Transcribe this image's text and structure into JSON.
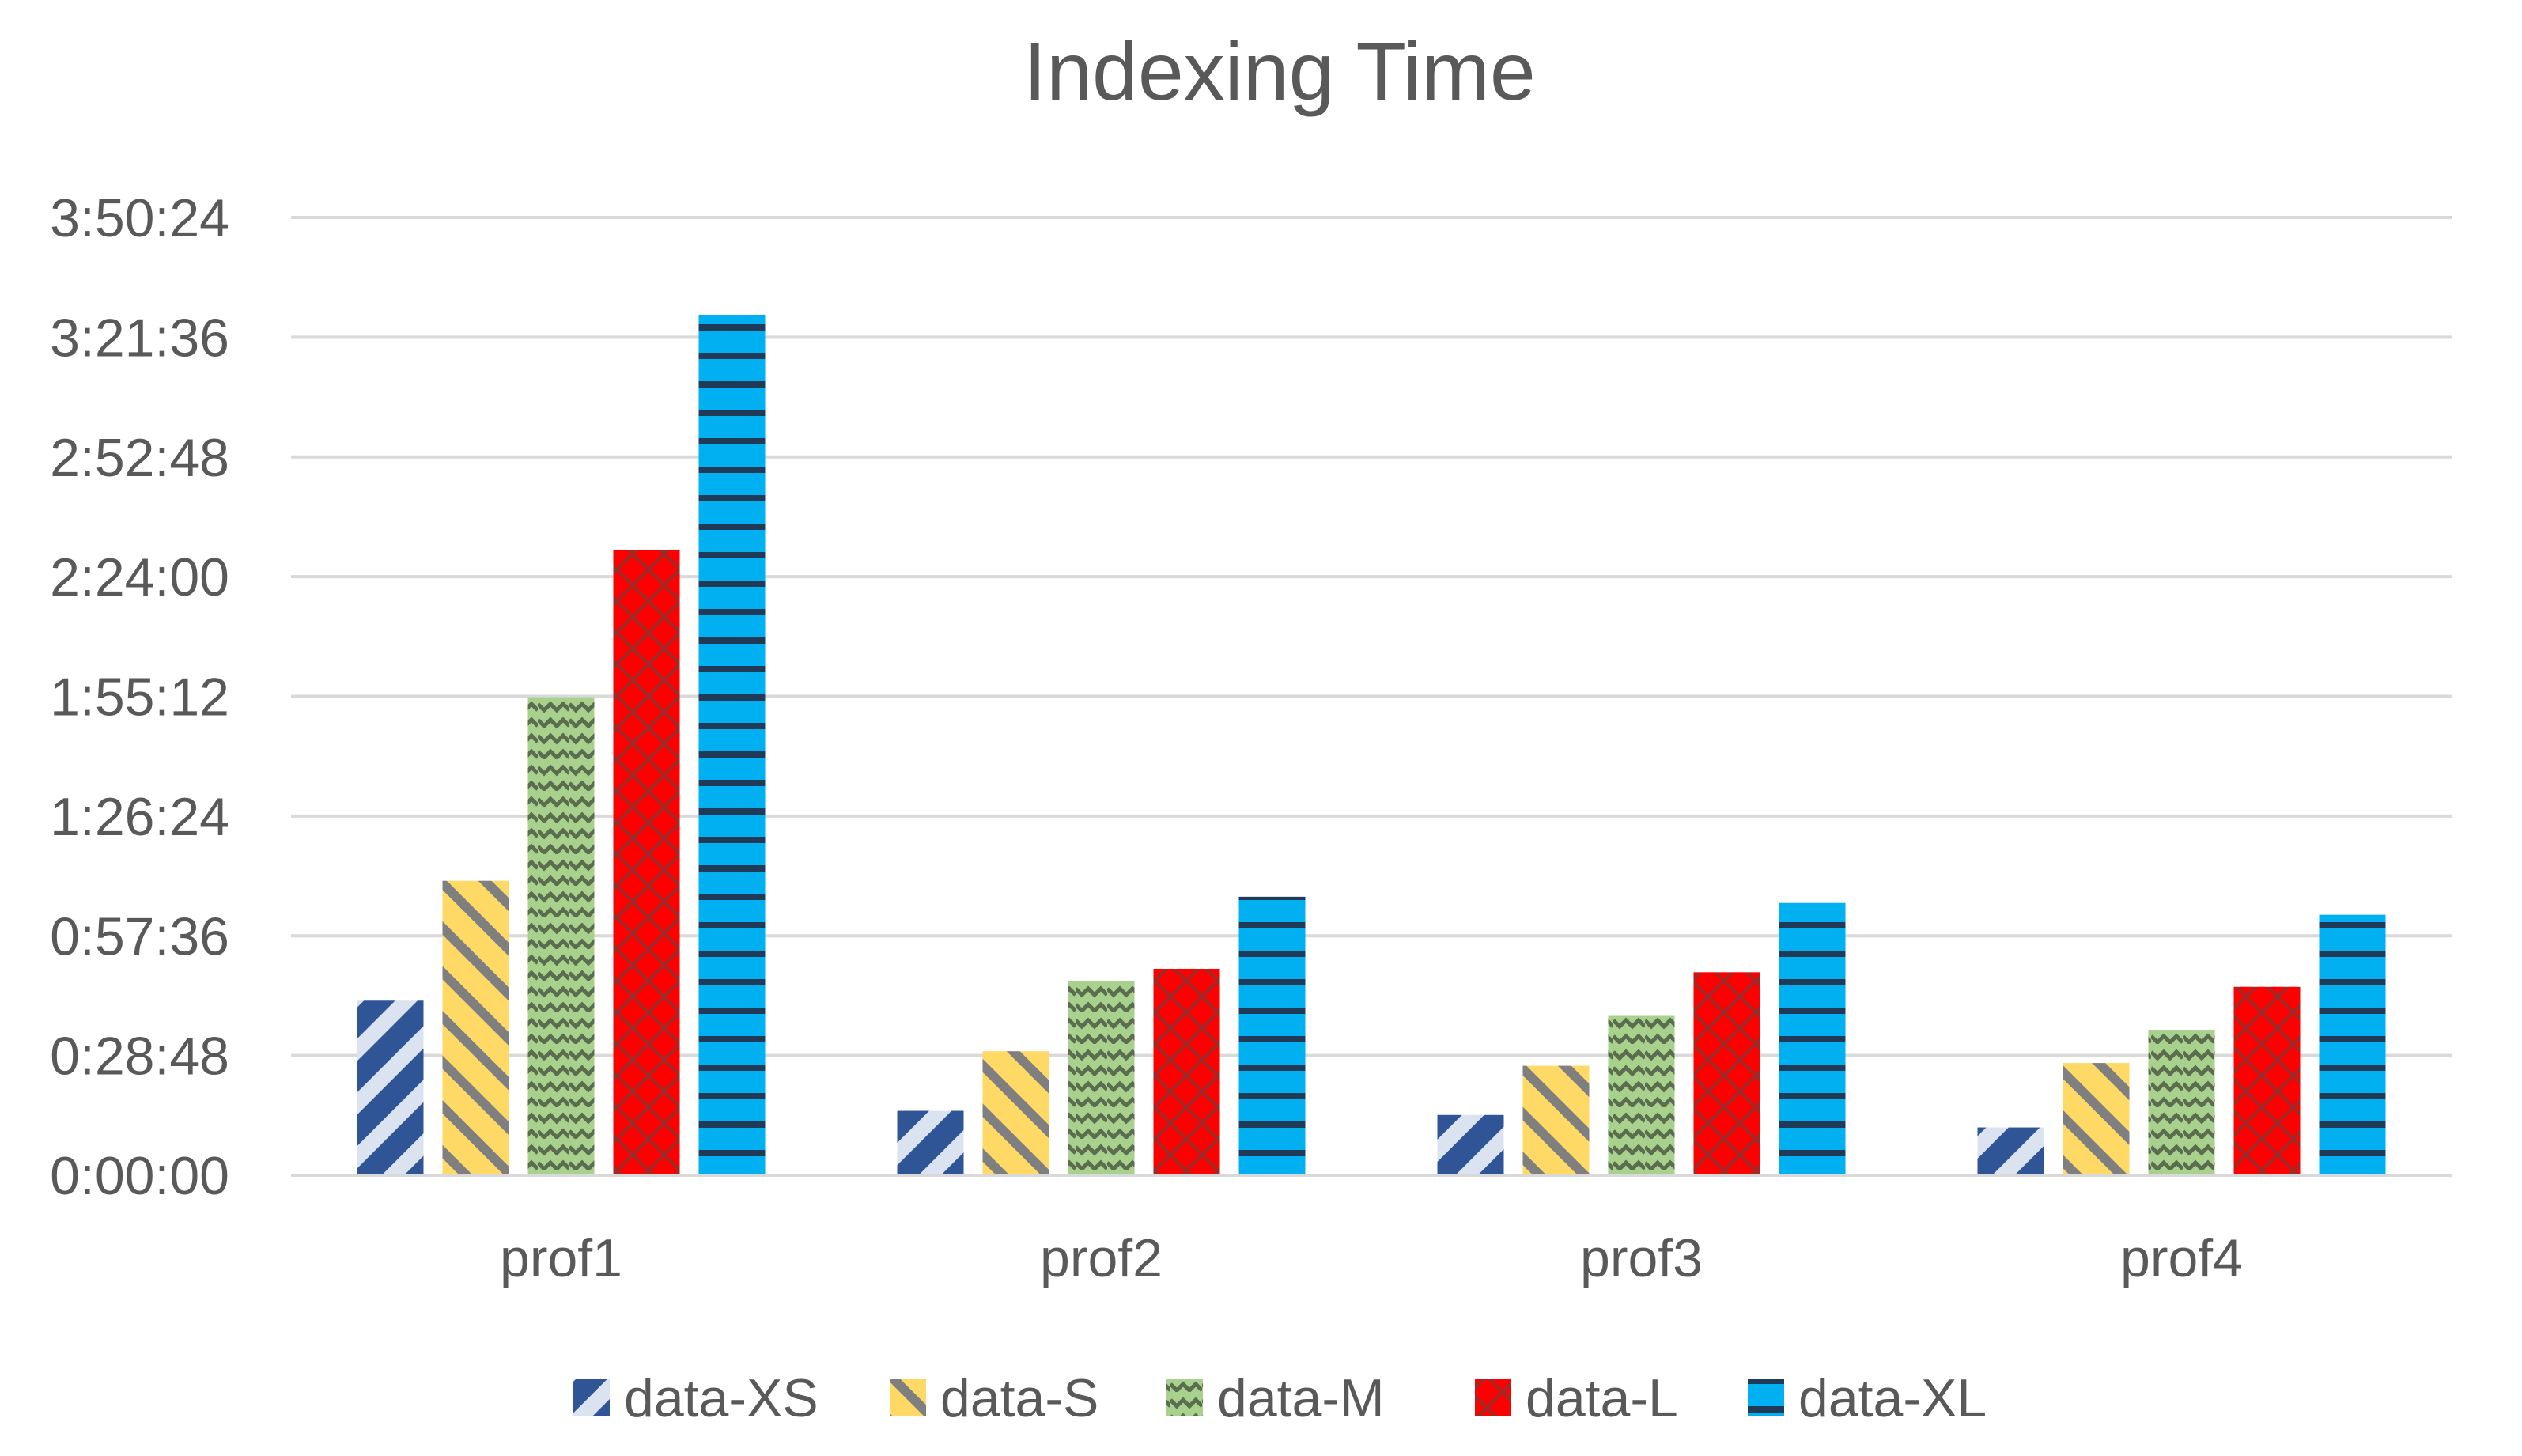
{
  "chart_data": {
    "type": "bar",
    "title": "Indexing  Time",
    "xlabel": "",
    "ylabel": "",
    "categories": [
      "prof1",
      "prof2",
      "prof3",
      "prof4"
    ],
    "y_ticks": [
      "0:00:00",
      "0:28:48",
      "0:57:36",
      "1:26:24",
      "1:55:12",
      "2:24:00",
      "2:52:48",
      "3:21:36",
      "3:50:24"
    ],
    "ylim_seconds": [
      0,
      13824
    ],
    "grid": true,
    "legend_position": "bottom",
    "series": [
      {
        "name": "data-XS",
        "color": "#2f5597",
        "pattern": "wide-diagonal",
        "values": [
          2520,
          930,
          870,
          690
        ]
      },
      {
        "name": "data-S",
        "color": "#ffd966",
        "pattern": "dashed-upward-diagonal",
        "values": [
          4250,
          1790,
          1580,
          1620
        ]
      },
      {
        "name": "data-M",
        "color": "#a9d18e",
        "pattern": "zigzag",
        "values": [
          6900,
          2800,
          2300,
          2100
        ]
      },
      {
        "name": "data-L",
        "color": "#ff0000",
        "pattern": "diamond-outline",
        "values": [
          9030,
          2980,
          2930,
          2720
        ]
      },
      {
        "name": "data-XL",
        "color": "#00b0f0",
        "pattern": "horizontal",
        "values": [
          12420,
          4020,
          3930,
          3760
        ]
      }
    ]
  }
}
